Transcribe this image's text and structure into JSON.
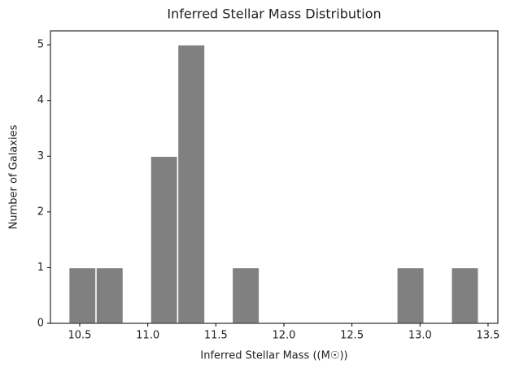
{
  "chart_data": {
    "type": "histogram",
    "title": "Inferred Stellar Mass Distribution",
    "x_label": "Inferred Stellar Mass ((M☉))",
    "y_label": "Number of Galaxies",
    "bins": [
      10.42,
      10.62,
      10.82,
      11.02,
      11.22,
      11.42,
      11.62,
      11.82,
      12.03,
      12.23,
      12.43,
      12.63,
      12.83,
      13.03,
      13.23,
      13.43
    ],
    "values": [
      1,
      1,
      0,
      3,
      5,
      0,
      1,
      0,
      0,
      0,
      0,
      0,
      1,
      0,
      1
    ],
    "color": "#808080",
    "xlim": [
      10.285,
      13.572
    ],
    "ylim": [
      0,
      5.25
    ],
    "xticks": [
      10.5,
      {
        "value": 11,
        "label": "11.0"
      },
      11.5,
      {
        "value": 12,
        "label": "12.0"
      },
      12.5,
      {
        "value": 13,
        "label": "13.0"
      },
      13.5
    ],
    "yticks": [
      0,
      1,
      2,
      3,
      4,
      5
    ]
  }
}
